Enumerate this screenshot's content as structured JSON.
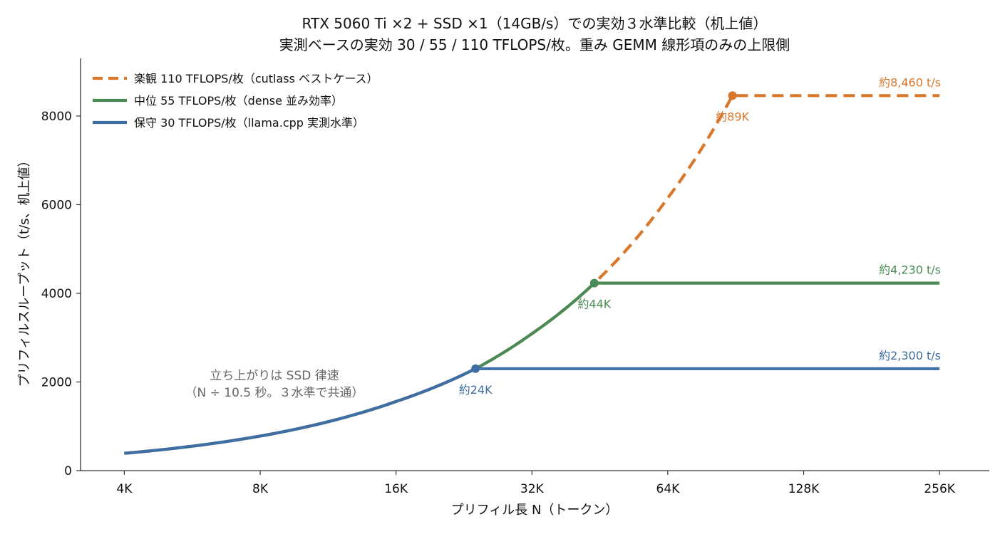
{
  "chart_data": {
    "type": "line",
    "title": "RTX 5060 Ti ×2 + SSD ×1（14GB/s）での実効３水準比較（机上値）",
    "subtitle": "実測ベースの実効 30 / 55 / 110 TFLOPS/枚。重み GEMM 線形項のみの上限側",
    "xlabel": "プリフィル長 N（トークン）",
    "ylabel": "プリフィルスループット（t/s、机上値）",
    "x_scale": "log2",
    "x_ticks": [
      4,
      8,
      16,
      32,
      64,
      128,
      256
    ],
    "x_tick_labels": [
      "4K",
      "8K",
      "16K",
      "32K",
      "64K",
      "128K",
      "256K"
    ],
    "xlim": [
      3.2,
      330
    ],
    "y_ticks": [
      0,
      2000,
      4000,
      6000,
      8000
    ],
    "y_tick_labels": [
      "0",
      "2000",
      "4000",
      "6000",
      "8000"
    ],
    "ylim": [
      0,
      9300
    ],
    "grid": false,
    "legend_position": "top-left",
    "series": [
      {
        "name": "楽観 110 TFLOPS/枚（cutlass ベストケース）",
        "color": "#d9772b",
        "style": "dashed",
        "x": [
          4,
          8,
          16,
          24,
          32,
          44,
          64,
          89,
          128,
          256
        ],
        "y": [
          390,
          780,
          1560,
          2300,
          3090,
          4230,
          6150,
          8460,
          8460,
          8460
        ]
      },
      {
        "name": "中位 55 TFLOPS/枚（dense 並み効率）",
        "color": "#4a8a55",
        "style": "solid",
        "x": [
          4,
          8,
          16,
          24,
          32,
          44,
          64,
          128,
          256
        ],
        "y": [
          390,
          780,
          1560,
          2300,
          3090,
          4230,
          4230,
          4230,
          4230
        ]
      },
      {
        "name": "保守 30 TFLOPS/枚（llama.cpp 実測水準）",
        "color": "#3e6ea3",
        "style": "solid",
        "x": [
          4,
          8,
          16,
          24,
          32,
          64,
          128,
          256
        ],
        "y": [
          390,
          780,
          1560,
          2300,
          2300,
          2300,
          2300,
          2300
        ]
      }
    ],
    "knee_points": [
      {
        "x": 24,
        "y": 2300,
        "label": "約24K",
        "color": "#3e6ea3"
      },
      {
        "x": 44,
        "y": 4230,
        "label": "約44K",
        "color": "#4a8a55"
      },
      {
        "x": 89,
        "y": 8460,
        "label": "約89K",
        "color": "#d9772b"
      }
    ],
    "plateau_labels": [
      {
        "y": 8460,
        "label": "約8,460 t/s",
        "color": "#d9772b"
      },
      {
        "y": 4230,
        "label": "約4,230 t/s",
        "color": "#4a8a55"
      },
      {
        "y": 2300,
        "label": "約2,300 t/s",
        "color": "#3e6ea3"
      }
    ],
    "annotation": {
      "line1": "立ち上がりは SSD 律速",
      "line2": "（N ÷ 10.5 秒。３水準で共通）"
    }
  }
}
